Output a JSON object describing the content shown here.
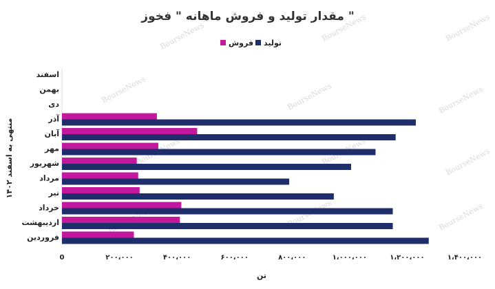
{
  "chart_data": {
    "type": "bar",
    "orientation": "horizontal",
    "title": "مقدار تولید و فروش ماهانه \" فخوز \"",
    "xlabel": "تن",
    "ylabel": "منتهی به اسفند ۱۴۰۲",
    "watermark": "BourseNews",
    "categories": [
      "اسفند",
      "بهمن",
      "دی",
      "آذر",
      "آبان",
      "مهر",
      "شهریور",
      "مرداد",
      "تیر",
      "خرداد",
      "اردیبهشت",
      "فروردین"
    ],
    "series": [
      {
        "name": "تولید",
        "color": "#1f2d6b",
        "values": [
          null,
          null,
          null,
          1230000,
          1160000,
          1090000,
          1005000,
          790000,
          945000,
          1150000,
          1150000,
          1275000
        ]
      },
      {
        "name": "فروش",
        "color": "#c2189e",
        "values": [
          null,
          null,
          null,
          330000,
          470000,
          335000,
          260000,
          265000,
          270000,
          415000,
          410000,
          250000
        ]
      }
    ],
    "xlim": [
      0,
      1400000
    ],
    "xticks": [
      0,
      200000,
      400000,
      600000,
      800000,
      1000000,
      1200000,
      1400000
    ],
    "xtick_labels": [
      "0",
      "۲۰۰،۰۰۰",
      "۴۰۰،۰۰۰",
      "۶۰۰،۰۰۰",
      "۸۰۰،۰۰۰",
      "۱،۰۰۰،۰۰۰",
      "۱،۲۰۰،۰۰۰",
      "۱،۴۰۰،۰۰۰"
    ],
    "grid": false,
    "legend_position": "top-center"
  }
}
